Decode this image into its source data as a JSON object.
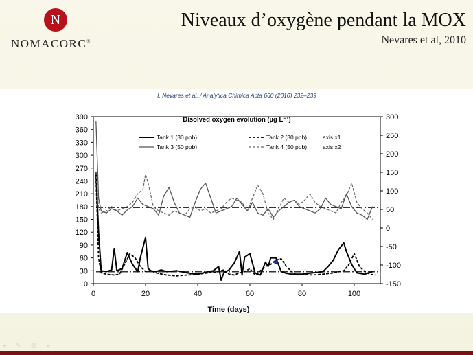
{
  "slide": {
    "title": "Niveaux d’oxygène pendant la MOX",
    "subtitle": "Nevares et al, 2010",
    "logo": {
      "initial": "N",
      "name": "NOMACORC",
      "trademark": "®"
    },
    "journal_ref": "I. Nevares et al. / Analytica Chimica Acta 660 (2010) 232–239",
    "colors": {
      "brand": "#b5121b",
      "bottom_bar": "#7a1015"
    }
  },
  "chart_data": {
    "type": "line",
    "title": "Disolved oxygen evolution (µg L⁻¹)",
    "xlabel": "Time (days)",
    "xlim": [
      0,
      110
    ],
    "x_ticks": [
      0,
      20,
      40,
      60,
      80,
      100
    ],
    "ylim_left": [
      0,
      390
    ],
    "y_left_ticks": [
      0,
      30,
      60,
      90,
      120,
      150,
      180,
      210,
      240,
      270,
      300,
      330,
      360,
      390
    ],
    "ylim_right": [
      -150,
      300
    ],
    "y_right_ticks": [
      -150,
      -100,
      -50,
      0,
      50,
      100,
      150,
      200,
      250,
      300
    ],
    "legend": [
      {
        "label": "Tank 1 (30 ppb)",
        "style": "solid-bold"
      },
      {
        "label": "Tank 2 (30 ppb)",
        "style": "dashed-bold",
        "note": "axis x1"
      },
      {
        "label": "Tank 3 (50 ppb)",
        "style": "solid-gray"
      },
      {
        "label": "Tank 4 (50 ppb)",
        "style": "dashed-gray",
        "note": "axis x2"
      }
    ],
    "series": [
      {
        "name": "Tank 1 (30 ppb)",
        "axis": "left",
        "style": "solid-bold",
        "x": [
          1,
          2,
          3,
          5,
          7,
          8,
          9,
          11,
          13,
          15,
          17,
          18,
          20,
          21,
          22,
          24,
          26,
          28,
          32,
          36,
          40,
          44,
          46,
          48,
          49,
          50,
          52,
          54,
          56,
          57,
          58,
          60,
          62,
          64,
          66,
          67,
          68,
          70,
          72,
          74,
          76,
          80,
          84,
          88,
          90,
          92,
          94,
          96,
          97,
          99,
          101,
          104,
          107
        ],
        "y": [
          260,
          120,
          30,
          28,
          32,
          82,
          30,
          35,
          72,
          45,
          28,
          60,
          108,
          35,
          30,
          28,
          32,
          28,
          30,
          25,
          22,
          28,
          30,
          40,
          8,
          25,
          32,
          48,
          75,
          20,
          62,
          70,
          25,
          20,
          50,
          40,
          60,
          60,
          28,
          24,
          22,
          22,
          25,
          28,
          40,
          55,
          80,
          95,
          75,
          45,
          25,
          22,
          28
        ]
      },
      {
        "name": "Tank 2 (30 ppb)",
        "axis": "left",
        "style": "dashed-bold",
        "x": [
          1,
          2,
          3,
          5,
          8,
          10,
          12,
          14,
          16,
          18,
          20,
          22,
          24,
          28,
          32,
          36,
          40,
          44,
          48,
          50,
          52,
          54,
          56,
          58,
          60,
          62,
          64,
          66,
          68,
          70,
          72,
          74,
          76,
          78,
          80,
          84,
          88,
          92,
          96,
          98,
          100,
          102,
          104,
          106,
          108
        ],
        "y": [
          250,
          60,
          25,
          22,
          20,
          22,
          45,
          70,
          60,
          40,
          28,
          30,
          25,
          20,
          18,
          20,
          22,
          25,
          28,
          32,
          22,
          20,
          25,
          28,
          35,
          20,
          30,
          40,
          45,
          55,
          58,
          40,
          28,
          20,
          22,
          20,
          22,
          25,
          30,
          45,
          70,
          40,
          28,
          22,
          20
        ]
      },
      {
        "name": "Tank 3 (50 ppb)",
        "axis": "left",
        "style": "solid-gray",
        "x": [
          1,
          2,
          3,
          5,
          7,
          9,
          11,
          13,
          15,
          17,
          19,
          21,
          23,
          25,
          27,
          29,
          31,
          33,
          35,
          37,
          39,
          41,
          43,
          45,
          47,
          49,
          51,
          53,
          55,
          57,
          59,
          61,
          63,
          65,
          67,
          69,
          71,
          73,
          75,
          77,
          79,
          81,
          83,
          85,
          87,
          89,
          91,
          93,
          95,
          97,
          99,
          101,
          103,
          105,
          107
        ],
        "y": [
          380,
          200,
          170,
          165,
          175,
          170,
          160,
          172,
          180,
          200,
          185,
          180,
          175,
          160,
          205,
          225,
          190,
          165,
          160,
          155,
          190,
          220,
          235,
          200,
          165,
          170,
          175,
          180,
          200,
          185,
          170,
          190,
          165,
          160,
          175,
          155,
          170,
          180,
          190,
          195,
          180,
          175,
          170,
          165,
          175,
          200,
          185,
          180,
          175,
          210,
          180,
          165,
          160,
          150,
          180
        ]
      },
      {
        "name": "Tank 4 (50 ppb)",
        "axis": "left",
        "style": "dashed-gray",
        "x": [
          1,
          2,
          3,
          5,
          7,
          9,
          11,
          13,
          15,
          17,
          19,
          20,
          21,
          23,
          25,
          27,
          29,
          31,
          33,
          35,
          37,
          39,
          41,
          43,
          45,
          47,
          49,
          51,
          53,
          55,
          57,
          59,
          61,
          63,
          65,
          67,
          69,
          71,
          73,
          75,
          77,
          79,
          81,
          83,
          85,
          87,
          89,
          91,
          93,
          95,
          97,
          99,
          101,
          103,
          105,
          107
        ],
        "y": [
          260,
          175,
          165,
          170,
          180,
          170,
          175,
          180,
          190,
          210,
          220,
          255,
          235,
          180,
          170,
          165,
          160,
          170,
          165,
          160,
          175,
          180,
          170,
          175,
          165,
          170,
          175,
          190,
          200,
          195,
          190,
          170,
          200,
          230,
          210,
          165,
          150,
          175,
          200,
          190,
          195,
          185,
          195,
          210,
          190,
          180,
          175,
          170,
          165,
          190,
          205,
          235,
          190,
          175,
          165,
          150
        ]
      }
    ],
    "reference_lines": [
      {
        "axis": "left",
        "y": 178,
        "style": "dash-dot"
      },
      {
        "axis": "left",
        "y": 28,
        "style": "dash-dot"
      }
    ],
    "annotation_marker": {
      "x": 70,
      "y": 50
    }
  }
}
